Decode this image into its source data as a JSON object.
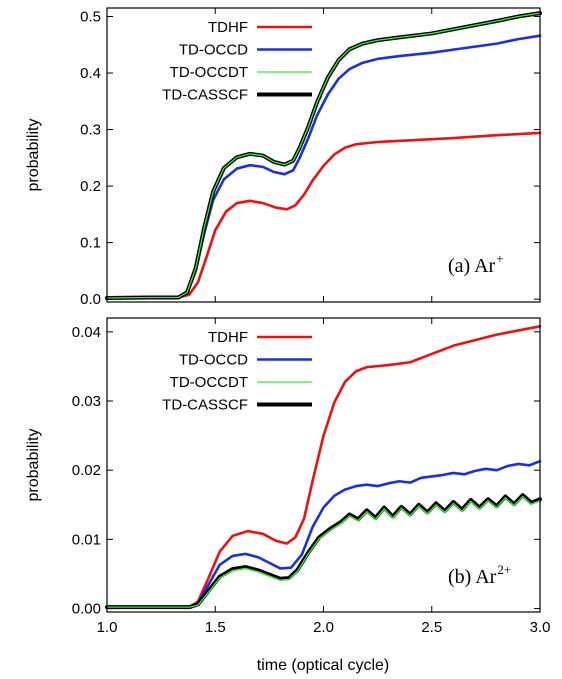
{
  "chart_data": [
    {
      "type": "line",
      "xlabel": "time (optical cycle)",
      "ylabel": "probability",
      "xlim": [
        1.0,
        3.0
      ],
      "ylim": [
        -0.005,
        0.515
      ],
      "xticks": [
        "1.0",
        "1.5",
        "2.0",
        "2.5",
        "3.0"
      ],
      "yticks": [
        "0.0",
        "0.1",
        "0.2",
        "0.3",
        "0.4",
        "0.5"
      ],
      "annotation": {
        "text": "(a) Ar",
        "sup": "+"
      },
      "legend_position": "top-left",
      "series": [
        {
          "name": "TDHF",
          "color": "#ee1111",
          "width": 2.6,
          "points": [
            [
              1.0,
              0.002
            ],
            [
              1.2,
              0.003
            ],
            [
              1.33,
              0.003
            ],
            [
              1.38,
              0.008
            ],
            [
              1.42,
              0.03
            ],
            [
              1.46,
              0.075
            ],
            [
              1.5,
              0.122
            ],
            [
              1.55,
              0.155
            ],
            [
              1.6,
              0.17
            ],
            [
              1.66,
              0.174
            ],
            [
              1.72,
              0.17
            ],
            [
              1.78,
              0.162
            ],
            [
              1.83,
              0.159
            ],
            [
              1.87,
              0.166
            ],
            [
              1.91,
              0.185
            ],
            [
              1.95,
              0.21
            ],
            [
              2.0,
              0.236
            ],
            [
              2.05,
              0.256
            ],
            [
              2.1,
              0.268
            ],
            [
              2.15,
              0.274
            ],
            [
              2.25,
              0.278
            ],
            [
              2.4,
              0.281
            ],
            [
              2.6,
              0.285
            ],
            [
              2.8,
              0.29
            ],
            [
              3.0,
              0.294
            ]
          ]
        },
        {
          "name": "TD-OCCD",
          "color": "#1b2fe0",
          "width": 2.6,
          "points": [
            [
              1.0,
              0.002
            ],
            [
              1.2,
              0.003
            ],
            [
              1.33,
              0.003
            ],
            [
              1.37,
              0.01
            ],
            [
              1.41,
              0.05
            ],
            [
              1.45,
              0.118
            ],
            [
              1.49,
              0.175
            ],
            [
              1.54,
              0.212
            ],
            [
              1.6,
              0.231
            ],
            [
              1.66,
              0.237
            ],
            [
              1.72,
              0.234
            ],
            [
              1.77,
              0.225
            ],
            [
              1.82,
              0.221
            ],
            [
              1.86,
              0.228
            ],
            [
              1.89,
              0.25
            ],
            [
              1.93,
              0.285
            ],
            [
              1.97,
              0.325
            ],
            [
              2.02,
              0.362
            ],
            [
              2.07,
              0.39
            ],
            [
              2.12,
              0.407
            ],
            [
              2.18,
              0.418
            ],
            [
              2.25,
              0.425
            ],
            [
              2.35,
              0.43
            ],
            [
              2.5,
              0.436
            ],
            [
              2.65,
              0.444
            ],
            [
              2.8,
              0.452
            ],
            [
              2.9,
              0.46
            ],
            [
              3.0,
              0.466
            ]
          ]
        },
        {
          "name": "TD-CASSCF",
          "color": "#000000",
          "width": 4.0,
          "points": [
            [
              1.0,
              0.002
            ],
            [
              1.2,
              0.003
            ],
            [
              1.33,
              0.003
            ],
            [
              1.37,
              0.012
            ],
            [
              1.41,
              0.055
            ],
            [
              1.45,
              0.128
            ],
            [
              1.49,
              0.19
            ],
            [
              1.54,
              0.232
            ],
            [
              1.6,
              0.251
            ],
            [
              1.66,
              0.257
            ],
            [
              1.72,
              0.254
            ],
            [
              1.77,
              0.243
            ],
            [
              1.82,
              0.238
            ],
            [
              1.86,
              0.245
            ],
            [
              1.89,
              0.268
            ],
            [
              1.93,
              0.305
            ],
            [
              1.97,
              0.348
            ],
            [
              2.02,
              0.392
            ],
            [
              2.07,
              0.423
            ],
            [
              2.12,
              0.442
            ],
            [
              2.18,
              0.452
            ],
            [
              2.25,
              0.458
            ],
            [
              2.35,
              0.463
            ],
            [
              2.5,
              0.47
            ],
            [
              2.65,
              0.481
            ],
            [
              2.8,
              0.492
            ],
            [
              2.9,
              0.5
            ],
            [
              3.0,
              0.506
            ]
          ]
        },
        {
          "name": "TD-OCCDT",
          "color": "#33ee33",
          "width": 1.3,
          "points": [
            [
              1.0,
              0.002
            ],
            [
              1.2,
              0.003
            ],
            [
              1.33,
              0.003
            ],
            [
              1.37,
              0.012
            ],
            [
              1.41,
              0.055
            ],
            [
              1.45,
              0.128
            ],
            [
              1.49,
              0.19
            ],
            [
              1.54,
              0.232
            ],
            [
              1.6,
              0.251
            ],
            [
              1.66,
              0.257
            ],
            [
              1.72,
              0.254
            ],
            [
              1.77,
              0.243
            ],
            [
              1.82,
              0.238
            ],
            [
              1.86,
              0.245
            ],
            [
              1.89,
              0.268
            ],
            [
              1.93,
              0.305
            ],
            [
              1.97,
              0.348
            ],
            [
              2.02,
              0.392
            ],
            [
              2.07,
              0.423
            ],
            [
              2.12,
              0.442
            ],
            [
              2.18,
              0.452
            ],
            [
              2.25,
              0.458
            ],
            [
              2.35,
              0.463
            ],
            [
              2.5,
              0.47
            ],
            [
              2.65,
              0.481
            ],
            [
              2.8,
              0.492
            ],
            [
              2.9,
              0.5
            ],
            [
              3.0,
              0.506
            ]
          ]
        }
      ],
      "legend_order": [
        "TDHF",
        "TD-OCCD",
        "TD-OCCDT",
        "TD-CASSCF"
      ]
    },
    {
      "type": "line",
      "xlabel": "time (optical cycle)",
      "ylabel": "probability",
      "xlim": [
        1.0,
        3.0
      ],
      "ylim": [
        -0.0005,
        0.042
      ],
      "xticks": [
        "1.0",
        "1.5",
        "2.0",
        "2.5",
        "3.0"
      ],
      "yticks": [
        "0.00",
        "0.01",
        "0.02",
        "0.03",
        "0.04"
      ],
      "annotation": {
        "text": "(b) Ar",
        "sup": "2+"
      },
      "legend_position": "top-left",
      "series": [
        {
          "name": "TDHF",
          "color": "#ee1111",
          "width": 2.6,
          "points": [
            [
              1.0,
              0.0002
            ],
            [
              1.2,
              0.0002
            ],
            [
              1.38,
              0.0002
            ],
            [
              1.42,
              0.001
            ],
            [
              1.47,
              0.0045
            ],
            [
              1.52,
              0.0082
            ],
            [
              1.58,
              0.0105
            ],
            [
              1.65,
              0.0112
            ],
            [
              1.72,
              0.0108
            ],
            [
              1.78,
              0.0098
            ],
            [
              1.83,
              0.0094
            ],
            [
              1.87,
              0.0103
            ],
            [
              1.91,
              0.013
            ],
            [
              1.95,
              0.0185
            ],
            [
              2.0,
              0.025
            ],
            [
              2.05,
              0.0298
            ],
            [
              2.1,
              0.0328
            ],
            [
              2.15,
              0.0343
            ],
            [
              2.2,
              0.0349
            ],
            [
              2.3,
              0.0352
            ],
            [
              2.4,
              0.0356
            ],
            [
              2.5,
              0.0368
            ],
            [
              2.6,
              0.038
            ],
            [
              2.7,
              0.0388
            ],
            [
              2.8,
              0.0396
            ],
            [
              2.9,
              0.0402
            ],
            [
              3.0,
              0.0408
            ]
          ]
        },
        {
          "name": "TD-OCCD",
          "color": "#1b2fe0",
          "width": 2.6,
          "points": [
            [
              1.0,
              0.0002
            ],
            [
              1.2,
              0.0002
            ],
            [
              1.38,
              0.0002
            ],
            [
              1.42,
              0.0008
            ],
            [
              1.47,
              0.0035
            ],
            [
              1.52,
              0.0063
            ],
            [
              1.58,
              0.0076
            ],
            [
              1.64,
              0.0079
            ],
            [
              1.7,
              0.0074
            ],
            [
              1.75,
              0.0066
            ],
            [
              1.8,
              0.0058
            ],
            [
              1.85,
              0.0059
            ],
            [
              1.9,
              0.0078
            ],
            [
              1.95,
              0.0118
            ],
            [
              2.0,
              0.0146
            ],
            [
              2.05,
              0.0163
            ],
            [
              2.1,
              0.0172
            ],
            [
              2.15,
              0.0177
            ],
            [
              2.2,
              0.0179
            ],
            [
              2.25,
              0.0177
            ],
            [
              2.3,
              0.0181
            ],
            [
              2.35,
              0.0184
            ],
            [
              2.4,
              0.0182
            ],
            [
              2.45,
              0.0189
            ],
            [
              2.5,
              0.0191
            ],
            [
              2.55,
              0.0193
            ],
            [
              2.6,
              0.0196
            ],
            [
              2.65,
              0.0194
            ],
            [
              2.7,
              0.0199
            ],
            [
              2.75,
              0.0202
            ],
            [
              2.8,
              0.02
            ],
            [
              2.85,
              0.0206
            ],
            [
              2.9,
              0.0209
            ],
            [
              2.95,
              0.0207
            ],
            [
              3.0,
              0.0213
            ]
          ]
        },
        {
          "name": "TD-CASSCF",
          "color": "#000000",
          "width": 4.0,
          "points": [
            [
              1.0,
              0.0002
            ],
            [
              1.2,
              0.0002
            ],
            [
              1.38,
              0.0002
            ],
            [
              1.42,
              0.0006
            ],
            [
              1.47,
              0.0026
            ],
            [
              1.52,
              0.0046
            ],
            [
              1.58,
              0.0057
            ],
            [
              1.64,
              0.006
            ],
            [
              1.7,
              0.0055
            ],
            [
              1.75,
              0.0049
            ],
            [
              1.8,
              0.0043
            ],
            [
              1.84,
              0.0044
            ],
            [
              1.88,
              0.0056
            ],
            [
              1.93,
              0.0081
            ],
            [
              1.98,
              0.0103
            ],
            [
              2.03,
              0.0115
            ],
            [
              2.08,
              0.0125
            ],
            [
              2.12,
              0.0136
            ],
            [
              2.16,
              0.0129
            ],
            [
              2.2,
              0.0142
            ],
            [
              2.24,
              0.0131
            ],
            [
              2.28,
              0.0146
            ],
            [
              2.32,
              0.0133
            ],
            [
              2.36,
              0.0147
            ],
            [
              2.4,
              0.0136
            ],
            [
              2.44,
              0.015
            ],
            [
              2.48,
              0.0139
            ],
            [
              2.52,
              0.0152
            ],
            [
              2.56,
              0.0141
            ],
            [
              2.6,
              0.0154
            ],
            [
              2.64,
              0.0143
            ],
            [
              2.68,
              0.0157
            ],
            [
              2.72,
              0.0146
            ],
            [
              2.76,
              0.0158
            ],
            [
              2.8,
              0.0148
            ],
            [
              2.84,
              0.0162
            ],
            [
              2.88,
              0.0151
            ],
            [
              2.92,
              0.0164
            ],
            [
              2.96,
              0.0153
            ],
            [
              3.0,
              0.0158
            ]
          ]
        },
        {
          "name": "TD-OCCDT",
          "color": "#33ee33",
          "width": 1.3,
          "points": [
            [
              1.0,
              0.0002
            ],
            [
              1.2,
              0.0002
            ],
            [
              1.38,
              0.0002
            ],
            [
              1.42,
              0.0005
            ],
            [
              1.47,
              0.0024
            ],
            [
              1.52,
              0.0044
            ],
            [
              1.58,
              0.0055
            ],
            [
              1.64,
              0.0058
            ],
            [
              1.7,
              0.0053
            ],
            [
              1.75,
              0.0047
            ],
            [
              1.8,
              0.0041
            ],
            [
              1.84,
              0.0042
            ],
            [
              1.88,
              0.0054
            ],
            [
              1.93,
              0.0079
            ],
            [
              1.98,
              0.0101
            ],
            [
              2.03,
              0.0113
            ],
            [
              2.08,
              0.0123
            ],
            [
              2.12,
              0.0134
            ],
            [
              2.16,
              0.0127
            ],
            [
              2.2,
              0.014
            ],
            [
              2.24,
              0.0129
            ],
            [
              2.28,
              0.0144
            ],
            [
              2.32,
              0.0131
            ],
            [
              2.36,
              0.0145
            ],
            [
              2.4,
              0.0134
            ],
            [
              2.44,
              0.0148
            ],
            [
              2.48,
              0.0137
            ],
            [
              2.52,
              0.015
            ],
            [
              2.56,
              0.0139
            ],
            [
              2.6,
              0.0152
            ],
            [
              2.64,
              0.0141
            ],
            [
              2.68,
              0.0155
            ],
            [
              2.72,
              0.0144
            ],
            [
              2.76,
              0.0156
            ],
            [
              2.8,
              0.0146
            ],
            [
              2.84,
              0.016
            ],
            [
              2.88,
              0.0149
            ],
            [
              2.92,
              0.0162
            ],
            [
              2.96,
              0.0151
            ],
            [
              3.0,
              0.0156
            ]
          ]
        }
      ],
      "legend_order": [
        "TDHF",
        "TD-OCCD",
        "TD-OCCDT",
        "TD-CASSCF"
      ]
    }
  ]
}
